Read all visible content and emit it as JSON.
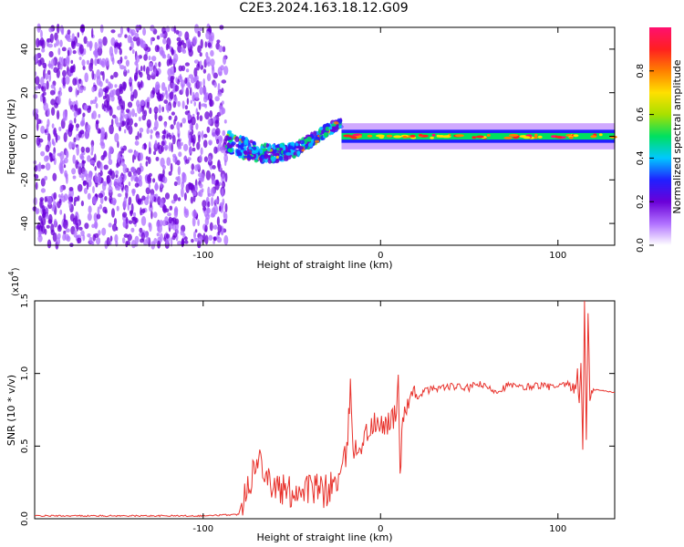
{
  "title": "C2E3.2024.163.18.12.G09",
  "chart_data": [
    {
      "type": "heatmap",
      "xlabel": "Height of straight line (km)",
      "ylabel": "Frequency (Hz)",
      "xlim": [
        -195,
        132
      ],
      "ylim": [
        -50,
        50
      ],
      "x_ticks": [
        -100,
        0,
        100
      ],
      "y_ticks": [
        -40,
        -20,
        0,
        20,
        40
      ],
      "colorbar": {
        "label": "Normalized spectral amplitude",
        "range": [
          0,
          1
        ],
        "ticks": [
          "0.0",
          "0.2",
          "0.4",
          "0.6",
          "0.8"
        ],
        "colors": [
          "#ffffff",
          "#b070ff",
          "#6a00d8",
          "#2020ff",
          "#00c8ff",
          "#00e060",
          "#a8e000",
          "#ffe000",
          "#ff8000",
          "#ff2020",
          "#ff1070"
        ]
      },
      "regions": [
        {
          "x_range": [
            -195,
            -87
          ],
          "freq_range": [
            -50,
            50
          ],
          "description_level": 0.12
        },
        {
          "x_range": [
            -87,
            -22
          ],
          "freq_range": [
            -12,
            10
          ],
          "description_level": 0.35
        },
        {
          "x_range": [
            -22,
            132
          ],
          "freq_range": [
            -3,
            3
          ],
          "description_level": 0.6
        }
      ]
    },
    {
      "type": "line",
      "xlabel": "Height of straight line (km)",
      "ylabel": "SNR (10 * v/v)",
      "scale_label": "(x10",
      "scale_exp": "4",
      "scale_close": ")",
      "xlim": [
        -195,
        132
      ],
      "ylim": [
        0,
        1.5
      ],
      "x_ticks": [
        -100,
        0,
        100
      ],
      "y_ticks": [
        0.0,
        0.5,
        1.0,
        1.5
      ],
      "series": [
        {
          "color": "#e8322c",
          "points": [
            [
              -195,
              0.02
            ],
            [
              -150,
              0.02
            ],
            [
              -100,
              0.02
            ],
            [
              -80,
              0.03
            ],
            [
              -76,
              0.22
            ],
            [
              -72,
              0.32
            ],
            [
              -67,
              0.42
            ],
            [
              -62,
              0.25
            ],
            [
              -57,
              0.2
            ],
            [
              -52,
              0.18
            ],
            [
              -47,
              0.2
            ],
            [
              -42,
              0.22
            ],
            [
              -37,
              0.2
            ],
            [
              -32,
              0.18
            ],
            [
              -28,
              0.22
            ],
            [
              -22,
              0.3
            ],
            [
              -19,
              0.45
            ],
            [
              -17,
              0.9
            ],
            [
              -15,
              0.45
            ],
            [
              -13,
              0.48
            ],
            [
              -8,
              0.58
            ],
            [
              -4,
              0.65
            ],
            [
              0,
              0.62
            ],
            [
              5,
              0.68
            ],
            [
              9,
              0.7
            ],
            [
              10,
              1.02
            ],
            [
              11,
              0.32
            ],
            [
              13,
              0.75
            ],
            [
              18,
              0.82
            ],
            [
              25,
              0.88
            ],
            [
              32,
              0.9
            ],
            [
              40,
              0.91
            ],
            [
              50,
              0.9
            ],
            [
              55,
              0.93
            ],
            [
              60,
              0.9
            ],
            [
              66,
              0.88
            ],
            [
              72,
              0.92
            ],
            [
              80,
              0.9
            ],
            [
              88,
              0.92
            ],
            [
              95,
              0.91
            ],
            [
              100,
              0.9
            ],
            [
              105,
              0.93
            ],
            [
              109,
              0.88
            ],
            [
              111,
              1.0
            ],
            [
              112,
              0.75
            ],
            [
              113,
              1.1
            ],
            [
              114,
              0.5
            ],
            [
              115,
              1.5
            ],
            [
              116,
              0.55
            ],
            [
              117,
              1.45
            ],
            [
              118,
              0.8
            ],
            [
              120,
              0.89
            ],
            [
              126,
              0.88
            ],
            [
              132,
              0.87
            ]
          ]
        }
      ]
    }
  ]
}
